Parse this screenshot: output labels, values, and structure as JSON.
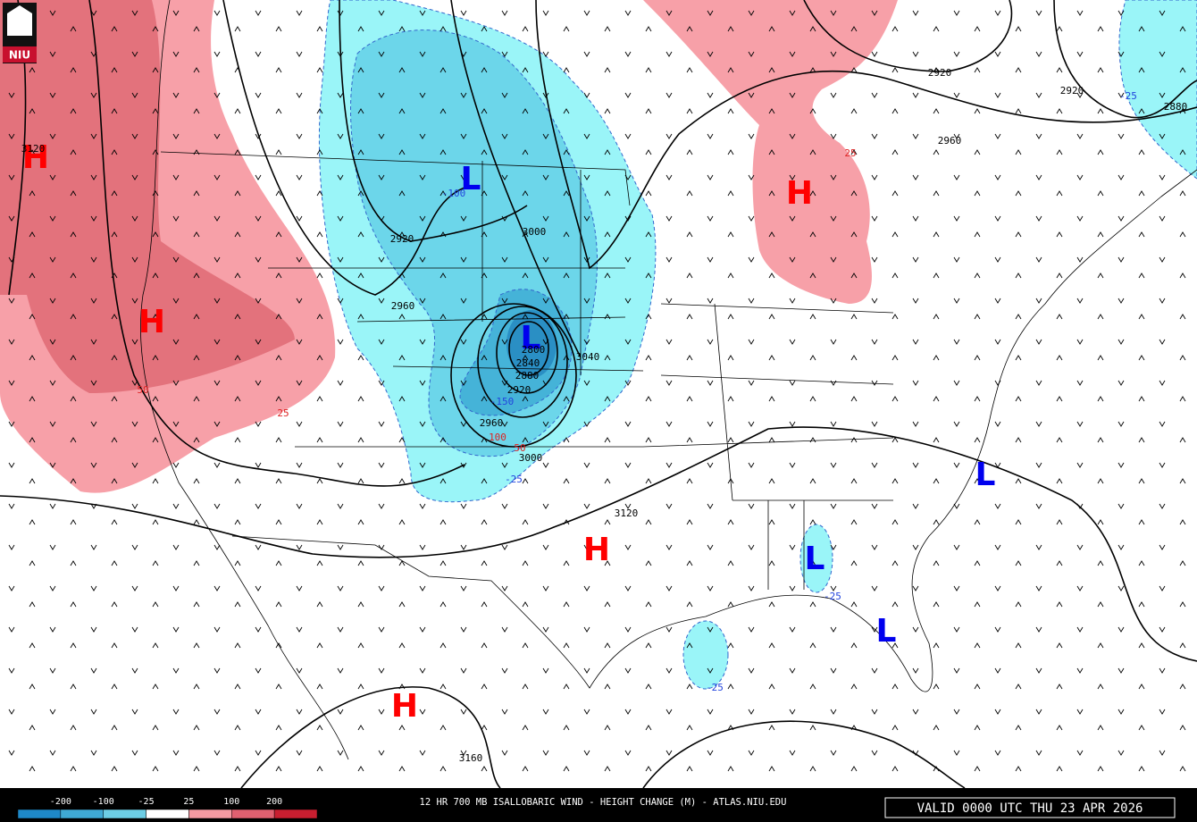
{
  "logo": "NIU",
  "centers": [
    "H",
    "H",
    "L",
    "L",
    "H",
    "L",
    "H",
    "L",
    "L",
    "H"
  ],
  "center_colors": {
    "H": "#ff0000",
    "L": "#0000ee"
  },
  "height_labels": [
    3120,
    2920,
    3000,
    2960,
    2920,
    2920,
    2960,
    2880,
    3040,
    2800,
    2840,
    2880,
    2920,
    2960,
    3000,
    3120,
    3160
  ],
  "change_labels": [
    -100,
    50,
    25,
    25,
    -25,
    -150,
    100,
    50,
    -25,
    -25,
    -25
  ],
  "change_colors": {
    "negative": "#2244dd",
    "positive": "#dd2222"
  },
  "colorbar": {
    "labels": [
      -200,
      -100,
      -25,
      25,
      100,
      200
    ],
    "colors": [
      "#1e88c8",
      "#3fa9d4",
      "#6ccde4",
      "#ffffff",
      "#f49aa2",
      "#e06070",
      "#c81e30"
    ]
  },
  "footer_title": "12 HR 700 MB ISALLOBARIC WIND - HEIGHT CHANGE (M) - ATLAS.NIU.EDU",
  "valid_time": "VALID 0000 UTC THU 23 APR 2026"
}
